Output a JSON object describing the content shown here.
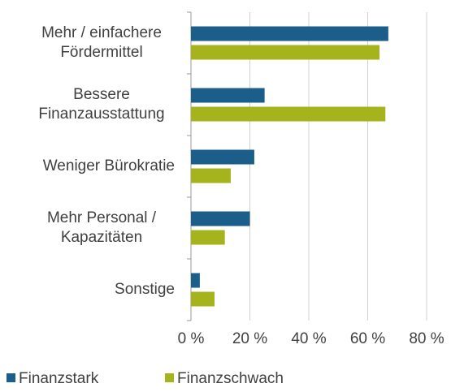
{
  "chart_data": {
    "type": "hbar",
    "categories": [
      "Mehr / einfachere\nFördermittel",
      "Bessere\nFinanzausstattung",
      "Weniger Bürokratie",
      "Mehr Personal /\nKapazitäten",
      "Sonstige"
    ],
    "series": [
      {
        "name": "Finanzstark",
        "color": "#1b5e8a",
        "values": [
          67,
          25,
          21.5,
          20,
          3
        ]
      },
      {
        "name": "Finanzschwach",
        "color": "#a5b41c",
        "values": [
          64,
          66,
          13.5,
          11.5,
          8
        ]
      }
    ],
    "xlim": [
      0,
      80
    ],
    "xticks": [
      {
        "value": 0,
        "label": "0 %"
      },
      {
        "value": 20,
        "label": "20 %"
      },
      {
        "value": 40,
        "label": "40 %"
      },
      {
        "value": 60,
        "label": "60 %"
      },
      {
        "value": 80,
        "label": "80 %"
      }
    ],
    "grid": true,
    "legend": "bottom"
  }
}
